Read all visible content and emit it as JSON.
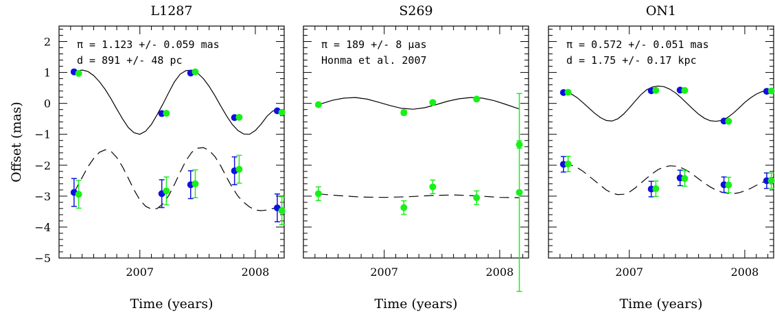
{
  "colors": {
    "blue": "#1010e0",
    "green": "#19f019"
  },
  "chart_data": [
    {
      "type": "scatter",
      "title": "L1287",
      "xlabel": "Time (years)",
      "ylabel": "Offset (mas)",
      "xlim": [
        2006.3,
        2008.25
      ],
      "ylim": [
        -5,
        2.5
      ],
      "xticks": [
        2007,
        2008
      ],
      "yticks": [
        2,
        1,
        0,
        -1,
        -2,
        -3,
        -4,
        -5
      ],
      "annotations": [
        "π = 1.123 +/- 0.059 mas",
        "d = 891 +/- 48 pc"
      ],
      "series": [
        {
          "color": "blue",
          "points": [
            {
              "x": 2006.43,
              "y": 1.02,
              "err": 0.05
            },
            {
              "x": 2007.19,
              "y": -0.33,
              "err": 0.05
            },
            {
              "x": 2007.44,
              "y": 0.98,
              "err": 0.05
            },
            {
              "x": 2007.82,
              "y": -0.46,
              "err": 0.05
            },
            {
              "x": 2008.19,
              "y": -0.24,
              "err": 0.05
            },
            {
              "x": 2006.43,
              "y": -2.88,
              "err": 0.45
            },
            {
              "x": 2007.19,
              "y": -2.92,
              "err": 0.45
            },
            {
              "x": 2007.44,
              "y": -2.63,
              "err": 0.45
            },
            {
              "x": 2007.82,
              "y": -2.18,
              "err": 0.45
            },
            {
              "x": 2008.19,
              "y": -3.38,
              "err": 0.45
            }
          ]
        },
        {
          "color": "green",
          "points": [
            {
              "x": 2006.47,
              "y": 0.97,
              "err": 0.05
            },
            {
              "x": 2007.23,
              "y": -0.32,
              "err": 0.05
            },
            {
              "x": 2007.48,
              "y": 1.02,
              "err": 0.05
            },
            {
              "x": 2007.86,
              "y": -0.45,
              "err": 0.05
            },
            {
              "x": 2008.23,
              "y": -0.29,
              "err": 0.05
            },
            {
              "x": 2006.47,
              "y": -2.94,
              "err": 0.45
            },
            {
              "x": 2007.23,
              "y": -2.83,
              "err": 0.45
            },
            {
              "x": 2007.48,
              "y": -2.6,
              "err": 0.45
            },
            {
              "x": 2007.86,
              "y": -2.13,
              "err": 0.45
            },
            {
              "x": 2008.23,
              "y": -3.47,
              "err": 0.45
            }
          ]
        }
      ],
      "models": [
        {
          "style": "solid",
          "x": [
            2006.43,
            2006.5,
            2006.55,
            2006.6,
            2006.65,
            2006.7,
            2006.75,
            2006.8,
            2006.85,
            2006.9,
            2006.95,
            2007.0,
            2007.05,
            2007.1,
            2007.15,
            2007.2,
            2007.25,
            2007.3,
            2007.35,
            2007.4,
            2007.45,
            2007.5,
            2007.55,
            2007.6,
            2007.65,
            2007.7,
            2007.75,
            2007.8,
            2007.85,
            2007.9,
            2007.95,
            2008.0,
            2008.05,
            2008.1,
            2008.15,
            2008.19
          ],
          "y": [
            1.02,
            1.08,
            1.03,
            0.9,
            0.7,
            0.45,
            0.15,
            -0.18,
            -0.5,
            -0.78,
            -0.95,
            -1.0,
            -0.9,
            -0.68,
            -0.36,
            -0.02,
            0.35,
            0.7,
            0.95,
            1.06,
            1.07,
            0.98,
            0.8,
            0.55,
            0.25,
            -0.08,
            -0.4,
            -0.68,
            -0.88,
            -0.99,
            -1.0,
            -0.88,
            -0.67,
            -0.42,
            -0.25,
            -0.2
          ]
        },
        {
          "style": "dashed",
          "x": [
            2006.43,
            2006.5,
            2006.55,
            2006.6,
            2006.65,
            2006.7,
            2006.75,
            2006.8,
            2006.85,
            2006.9,
            2006.95,
            2007.0,
            2007.05,
            2007.1,
            2007.15,
            2007.2,
            2007.25,
            2007.3,
            2007.35,
            2007.4,
            2007.45,
            2007.5,
            2007.55,
            2007.6,
            2007.65,
            2007.7,
            2007.75,
            2007.8,
            2007.85,
            2007.9,
            2007.95,
            2008.0,
            2008.05,
            2008.1,
            2008.15,
            2008.19
          ],
          "y": [
            -2.88,
            -2.4,
            -2.05,
            -1.78,
            -1.58,
            -1.5,
            -1.55,
            -1.75,
            -2.05,
            -2.42,
            -2.8,
            -3.12,
            -3.33,
            -3.42,
            -3.4,
            -3.25,
            -2.98,
            -2.62,
            -2.22,
            -1.85,
            -1.58,
            -1.45,
            -1.43,
            -1.52,
            -1.72,
            -2.02,
            -2.38,
            -2.72,
            -3.0,
            -3.2,
            -3.35,
            -3.45,
            -3.47,
            -3.45,
            -3.4,
            -3.38
          ]
        }
      ]
    },
    {
      "type": "scatter",
      "title": "S269",
      "xlabel": "Time (years)",
      "xlim": [
        2006.3,
        2008.25
      ],
      "ylim": [
        -5,
        2.5
      ],
      "xticks": [
        2007,
        2008
      ],
      "annotations": [
        "π = 189 +/- 8 μas",
        "Honma et al. 2007"
      ],
      "series": [
        {
          "color": "green",
          "points": [
            {
              "x": 2006.43,
              "y": -0.04,
              "err": 0.05
            },
            {
              "x": 2007.17,
              "y": -0.3,
              "err": 0.08
            },
            {
              "x": 2007.42,
              "y": 0.03,
              "err": 0.06
            },
            {
              "x": 2007.8,
              "y": 0.14,
              "err": 0.06
            },
            {
              "x": 2008.17,
              "y": -1.33,
              "err": 0.12
            },
            {
              "x": 2006.43,
              "y": -2.92,
              "err": 0.22
            },
            {
              "x": 2007.17,
              "y": -3.37,
              "err": 0.22
            },
            {
              "x": 2007.42,
              "y": -2.7,
              "err": 0.22
            },
            {
              "x": 2007.8,
              "y": -3.05,
              "err": 0.22
            },
            {
              "x": 2008.17,
              "y": -2.88,
              "err": 3.2
            }
          ]
        }
      ],
      "models": [
        {
          "style": "solid",
          "x": [
            2006.43,
            2006.55,
            2006.65,
            2006.75,
            2006.85,
            2006.95,
            2007.05,
            2007.15,
            2007.25,
            2007.35,
            2007.45,
            2007.55,
            2007.65,
            2007.75,
            2007.85,
            2007.95,
            2008.05,
            2008.17
          ],
          "y": [
            -0.04,
            0.1,
            0.17,
            0.19,
            0.14,
            0.04,
            -0.07,
            -0.16,
            -0.19,
            -0.14,
            -0.04,
            0.07,
            0.15,
            0.19,
            0.17,
            0.09,
            -0.03,
            -0.18
          ]
        },
        {
          "style": "dashed",
          "x": [
            2006.43,
            2006.6,
            2006.8,
            2007.0,
            2007.2,
            2007.4,
            2007.6,
            2007.8,
            2008.0,
            2008.17
          ],
          "y": [
            -2.93,
            -2.98,
            -3.03,
            -3.04,
            -3.02,
            -2.98,
            -2.96,
            -2.99,
            -3.04,
            -3.05
          ]
        }
      ]
    },
    {
      "type": "scatter",
      "title": "ON1",
      "xlabel": "Time (years)",
      "xlim": [
        2006.3,
        2008.25
      ],
      "ylim": [
        -5,
        2.5
      ],
      "xticks": [
        2007,
        2008
      ],
      "annotations": [
        "π = 0.572 +/- 0.051 mas",
        "d = 1.75 +/- 0.17 kpc"
      ],
      "series": [
        {
          "color": "blue",
          "points": [
            {
              "x": 2006.43,
              "y": 0.35,
              "err": 0.05
            },
            {
              "x": 2007.19,
              "y": 0.41,
              "err": 0.05
            },
            {
              "x": 2007.44,
              "y": 0.43,
              "err": 0.05
            },
            {
              "x": 2007.82,
              "y": -0.57,
              "err": 0.05
            },
            {
              "x": 2008.19,
              "y": 0.39,
              "err": 0.05
            },
            {
              "x": 2006.43,
              "y": -1.97,
              "err": 0.25
            },
            {
              "x": 2007.19,
              "y": -2.77,
              "err": 0.25
            },
            {
              "x": 2007.44,
              "y": -2.41,
              "err": 0.25
            },
            {
              "x": 2007.82,
              "y": -2.63,
              "err": 0.25
            },
            {
              "x": 2008.19,
              "y": -2.5,
              "err": 0.25
            }
          ]
        },
        {
          "color": "green",
          "points": [
            {
              "x": 2006.47,
              "y": 0.36,
              "err": 0.05
            },
            {
              "x": 2007.23,
              "y": 0.42,
              "err": 0.05
            },
            {
              "x": 2007.48,
              "y": 0.42,
              "err": 0.05
            },
            {
              "x": 2007.86,
              "y": -0.58,
              "err": 0.05
            },
            {
              "x": 2008.23,
              "y": 0.4,
              "err": 0.05
            },
            {
              "x": 2006.47,
              "y": -1.96,
              "err": 0.25
            },
            {
              "x": 2007.23,
              "y": -2.76,
              "err": 0.25
            },
            {
              "x": 2007.48,
              "y": -2.43,
              "err": 0.25
            },
            {
              "x": 2007.86,
              "y": -2.64,
              "err": 0.25
            },
            {
              "x": 2008.23,
              "y": -2.5,
              "err": 0.25
            }
          ]
        }
      ],
      "models": [
        {
          "style": "solid",
          "x": [
            2006.43,
            2006.5,
            2006.55,
            2006.6,
            2006.65,
            2006.7,
            2006.75,
            2006.8,
            2006.85,
            2006.9,
            2006.95,
            2007.0,
            2007.05,
            2007.1,
            2007.15,
            2007.2,
            2007.25,
            2007.3,
            2007.35,
            2007.4,
            2007.45,
            2007.5,
            2007.55,
            2007.6,
            2007.65,
            2007.7,
            2007.75,
            2007.8,
            2007.85,
            2007.9,
            2007.95,
            2008.0,
            2008.05,
            2008.1,
            2008.15,
            2008.19
          ],
          "y": [
            0.35,
            0.3,
            0.18,
            0.02,
            -0.15,
            -0.32,
            -0.46,
            -0.55,
            -0.57,
            -0.5,
            -0.35,
            -0.15,
            0.07,
            0.28,
            0.44,
            0.53,
            0.56,
            0.54,
            0.46,
            0.34,
            0.18,
            0.0,
            -0.18,
            -0.35,
            -0.48,
            -0.56,
            -0.58,
            -0.55,
            -0.46,
            -0.32,
            -0.15,
            0.03,
            0.18,
            0.3,
            0.38,
            0.4
          ]
        },
        {
          "style": "dashed",
          "x": [
            2006.43,
            2006.5,
            2006.55,
            2006.6,
            2006.65,
            2006.7,
            2006.75,
            2006.8,
            2006.85,
            2006.9,
            2006.95,
            2007.0,
            2007.05,
            2007.1,
            2007.15,
            2007.2,
            2007.25,
            2007.3,
            2007.35,
            2007.4,
            2007.45,
            2007.5,
            2007.55,
            2007.6,
            2007.65,
            2007.7,
            2007.75,
            2007.8,
            2007.85,
            2007.9,
            2007.95,
            2008.0,
            2008.05,
            2008.1,
            2008.15,
            2008.19
          ],
          "y": [
            -1.97,
            -2.0,
            -2.08,
            -2.2,
            -2.35,
            -2.5,
            -2.65,
            -2.8,
            -2.9,
            -2.95,
            -2.94,
            -2.87,
            -2.74,
            -2.58,
            -2.42,
            -2.27,
            -2.14,
            -2.06,
            -2.02,
            -2.03,
            -2.08,
            -2.17,
            -2.3,
            -2.44,
            -2.58,
            -2.7,
            -2.8,
            -2.87,
            -2.91,
            -2.92,
            -2.89,
            -2.83,
            -2.75,
            -2.65,
            -2.56,
            -2.5
          ]
        }
      ]
    }
  ]
}
